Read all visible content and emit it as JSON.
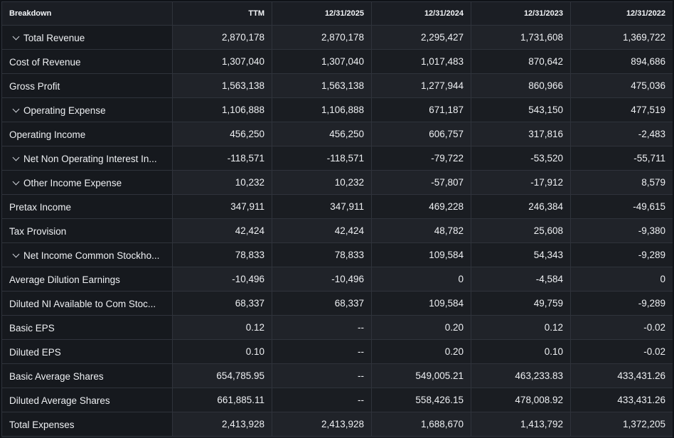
{
  "headers": [
    "Breakdown",
    "TTM",
    "12/31/2025",
    "12/31/2024",
    "12/31/2023",
    "12/31/2022"
  ],
  "rows": [
    {
      "label": "Total Revenue",
      "expandable": true,
      "values": [
        "2,870,178",
        "2,870,178",
        "2,295,427",
        "1,731,608",
        "1,369,722"
      ]
    },
    {
      "label": "Cost of Revenue",
      "expandable": false,
      "values": [
        "1,307,040",
        "1,307,040",
        "1,017,483",
        "870,642",
        "894,686"
      ]
    },
    {
      "label": "Gross Profit",
      "expandable": false,
      "values": [
        "1,563,138",
        "1,563,138",
        "1,277,944",
        "860,966",
        "475,036"
      ]
    },
    {
      "label": "Operating Expense",
      "expandable": true,
      "values": [
        "1,106,888",
        "1,106,888",
        "671,187",
        "543,150",
        "477,519"
      ]
    },
    {
      "label": "Operating Income",
      "expandable": false,
      "values": [
        "456,250",
        "456,250",
        "606,757",
        "317,816",
        "-2,483"
      ]
    },
    {
      "label": "Net Non Operating Interest In...",
      "expandable": true,
      "values": [
        "-118,571",
        "-118,571",
        "-79,722",
        "-53,520",
        "-55,711"
      ]
    },
    {
      "label": "Other Income Expense",
      "expandable": true,
      "values": [
        "10,232",
        "10,232",
        "-57,807",
        "-17,912",
        "8,579"
      ]
    },
    {
      "label": "Pretax Income",
      "expandable": false,
      "values": [
        "347,911",
        "347,911",
        "469,228",
        "246,384",
        "-49,615"
      ]
    },
    {
      "label": "Tax Provision",
      "expandable": false,
      "values": [
        "42,424",
        "42,424",
        "48,782",
        "25,608",
        "-9,380"
      ]
    },
    {
      "label": "Net Income Common Stockho...",
      "expandable": true,
      "values": [
        "78,833",
        "78,833",
        "109,584",
        "54,343",
        "-9,289"
      ]
    },
    {
      "label": "Average Dilution Earnings",
      "expandable": false,
      "values": [
        "-10,496",
        "-10,496",
        "0",
        "-4,584",
        "0"
      ]
    },
    {
      "label": "Diluted NI Available to Com Stoc...",
      "expandable": false,
      "values": [
        "68,337",
        "68,337",
        "109,584",
        "49,759",
        "-9,289"
      ]
    },
    {
      "label": "Basic EPS",
      "expandable": false,
      "values": [
        "0.12",
        "--",
        "0.20",
        "0.12",
        "-0.02"
      ]
    },
    {
      "label": "Diluted EPS",
      "expandable": false,
      "values": [
        "0.10",
        "--",
        "0.20",
        "0.10",
        "-0.02"
      ]
    },
    {
      "label": "Basic Average Shares",
      "expandable": false,
      "values": [
        "654,785.95",
        "--",
        "549,005.21",
        "463,233.83",
        "433,431.26"
      ]
    },
    {
      "label": "Diluted Average Shares",
      "expandable": false,
      "values": [
        "661,885.11",
        "--",
        "558,426.15",
        "478,008.92",
        "433,431.26"
      ]
    },
    {
      "label": "Total Expenses",
      "expandable": false,
      "values": [
        "2,413,928",
        "2,413,928",
        "1,688,670",
        "1,413,792",
        "1,372,205"
      ]
    }
  ]
}
